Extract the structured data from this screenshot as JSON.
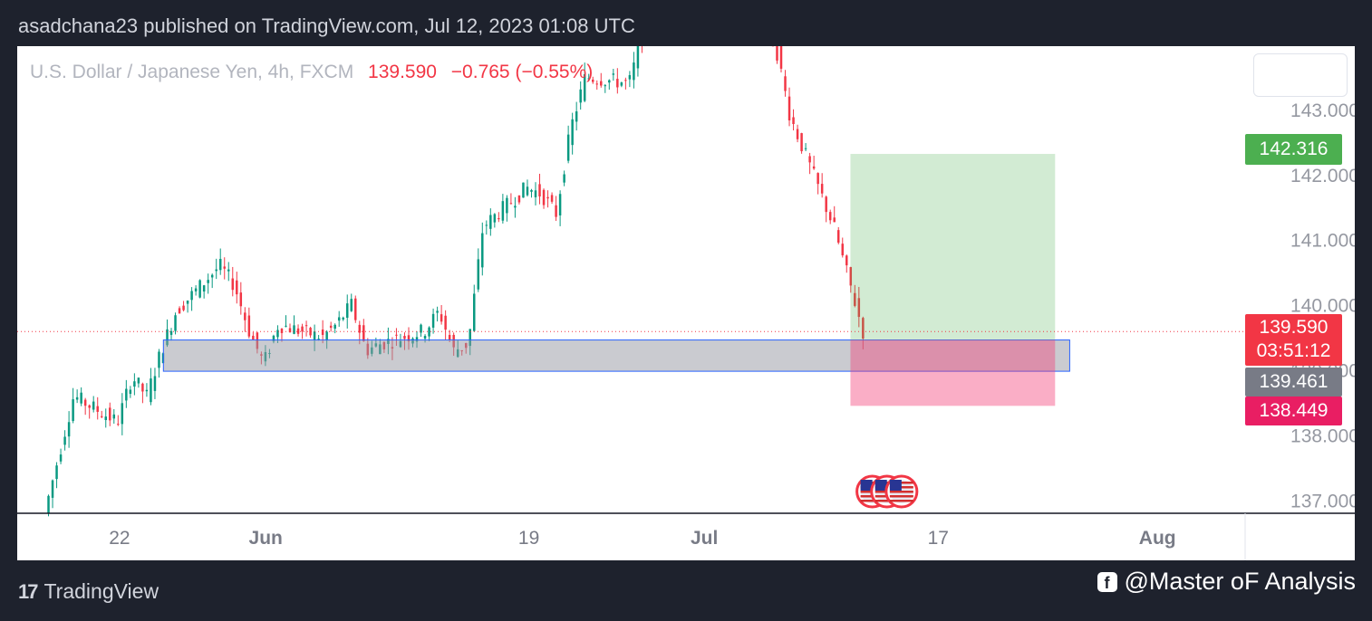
{
  "header": {
    "publish_line": "asadchana23 published on TradingView.com, Jul 12, 2023 01:08 UTC"
  },
  "symbol": {
    "name": "U.S. Dollar / Japanese Yen, 4h, FXCM",
    "price": "139.590",
    "change": "−0.765 (−0.55%)"
  },
  "labels": {
    "target": {
      "text": "142.316",
      "color": "#4caf50"
    },
    "current": {
      "text": "139.590",
      "countdown": "03:51:12",
      "color": "#f23645"
    },
    "entry": {
      "text": "139.461",
      "color": "#787b86"
    },
    "stop": {
      "text": "138.449",
      "color": "#e91e63"
    }
  },
  "footer": {
    "brand": "TradingView",
    "brand_icon": "tradingview-logo-icon",
    "social_icon": "facebook-icon",
    "social": "@Master oF Analysis"
  },
  "chart_data": {
    "type": "candlestick",
    "title": "U.S. Dollar / Japanese Yen, 4h, FXCM",
    "y_ticks": [
      137,
      138,
      139,
      140,
      141,
      142,
      143
    ],
    "y_tick_labels": [
      "137.000",
      "138.000",
      "139.000",
      "140.000",
      "141.000",
      "142.000",
      "143.000"
    ],
    "ylim": [
      136.8,
      143.97
    ],
    "x_ticks": [
      "22",
      "Jun",
      "19",
      "Jul",
      "17",
      "Aug"
    ],
    "x_tick_dates": [
      "2023-05-22",
      "2023-06-01",
      "2023-06-19",
      "2023-07-01",
      "2023-07-17",
      "2023-08-01"
    ],
    "xlim": [
      "2023-05-15",
      "2023-08-07"
    ],
    "grid": false,
    "colors": {
      "up": "#089981",
      "down": "#f23645"
    },
    "last_price": 139.59,
    "demand_zone": {
      "from": "2023-05-25",
      "to": "2023-07-26",
      "top": 139.46,
      "bottom": 138.98
    },
    "position": {
      "side": "long",
      "from": "2023-07-11",
      "to": "2023-07-25",
      "entry": 139.461,
      "target": 142.316,
      "stop": 138.449
    },
    "events": [
      {
        "date": "2023-07-12",
        "icon": "us-flag-icon"
      },
      {
        "date": "2023-07-13",
        "icon": "us-flag-icon"
      },
      {
        "date": "2023-07-14",
        "icon": "us-flag-icon"
      }
    ],
    "anchors": [
      [
        "2023-05-17",
        136.8
      ],
      [
        "2023-05-18",
        137.7
      ],
      [
        "2023-05-19",
        138.6
      ],
      [
        "2023-05-22",
        138.2
      ],
      [
        "2023-05-23",
        138.9
      ],
      [
        "2023-05-24",
        138.6
      ],
      [
        "2023-05-25",
        139.3
      ],
      [
        "2023-05-26",
        139.9
      ],
      [
        "2023-05-29",
        140.6
      ],
      [
        "2023-05-30",
        140.3
      ],
      [
        "2023-05-31",
        139.6
      ],
      [
        "2023-06-01",
        139.1
      ],
      [
        "2023-06-02",
        139.7
      ],
      [
        "2023-06-05",
        139.5
      ],
      [
        "2023-06-06",
        139.7
      ],
      [
        "2023-06-07",
        140.0
      ],
      [
        "2023-06-08",
        139.3
      ],
      [
        "2023-06-09",
        139.4
      ],
      [
        "2023-06-12",
        139.6
      ],
      [
        "2023-06-13",
        139.9
      ],
      [
        "2023-06-14",
        139.3
      ],
      [
        "2023-06-15",
        139.4
      ],
      [
        "2023-06-16",
        141.2
      ],
      [
        "2023-06-19",
        141.8
      ],
      [
        "2023-06-20",
        141.7
      ],
      [
        "2023-06-21",
        141.4
      ],
      [
        "2023-06-22",
        142.7
      ],
      [
        "2023-06-23",
        143.5
      ],
      [
        "2023-06-26",
        143.4
      ],
      [
        "2023-06-27",
        144.2
      ],
      [
        "2023-06-28",
        144.5
      ],
      [
        "2023-06-29",
        144.6
      ],
      [
        "2023-06-30",
        144.4
      ],
      [
        "2023-07-03",
        144.6
      ],
      [
        "2023-07-04",
        144.6
      ],
      [
        "2023-07-05",
        144.3
      ],
      [
        "2023-07-06",
        144.0
      ],
      [
        "2023-07-07",
        142.9
      ],
      [
        "2023-07-10",
        141.2
      ],
      [
        "2023-07-11",
        140.4
      ],
      [
        "2023-07-12",
        139.59
      ]
    ]
  }
}
